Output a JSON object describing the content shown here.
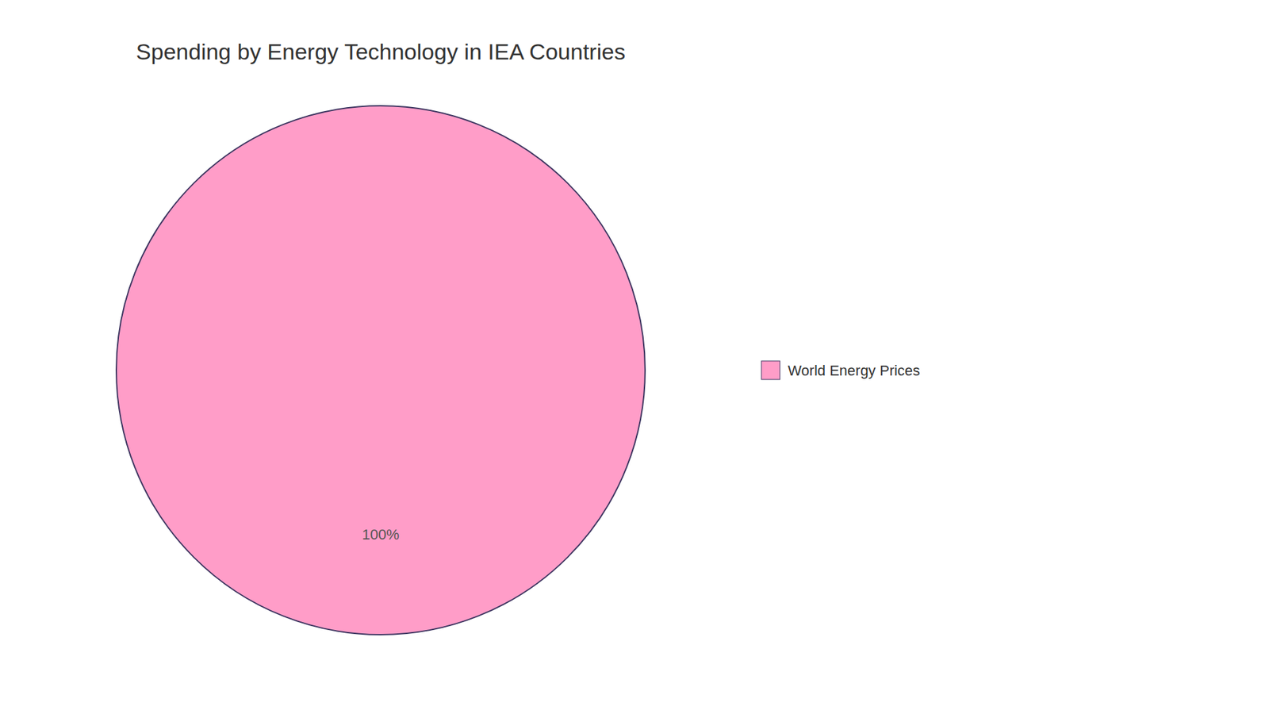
{
  "chart_data": {
    "type": "pie",
    "title": "Spending by Energy Technology in IEA Countries",
    "series": [
      {
        "name": "World Energy Prices",
        "color": "#FF9DC8",
        "values": [
          100
        ],
        "value_labels": [
          "100%"
        ]
      }
    ],
    "data_labels": true,
    "legend": "right"
  }
}
